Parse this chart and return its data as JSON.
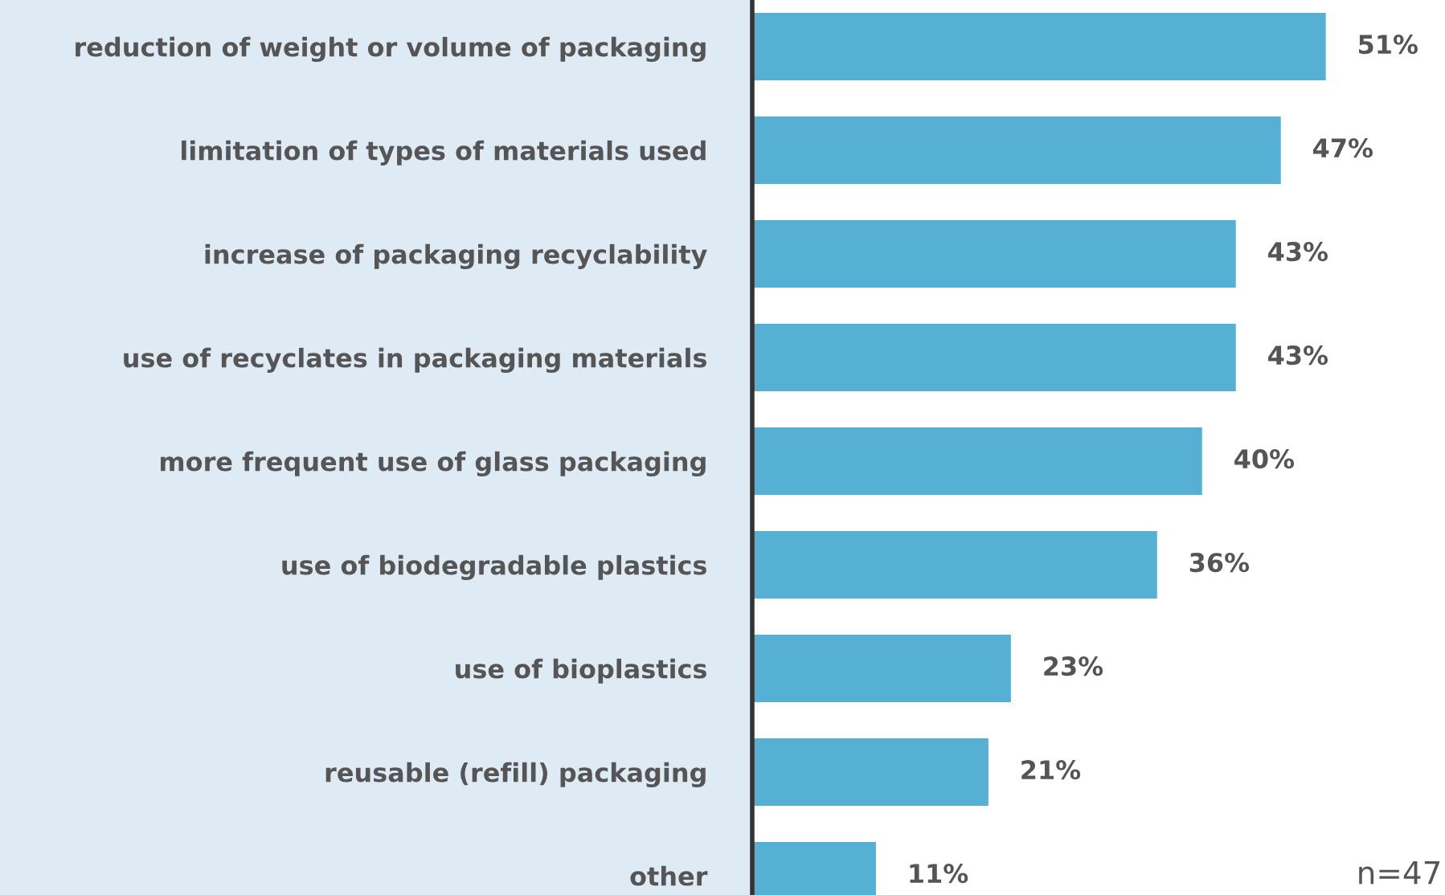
{
  "chart_data": {
    "type": "bar",
    "orientation": "horizontal",
    "categories": [
      "reduction of weight or volume of packaging",
      "limitation of types of materials used",
      "increase of packaging recyclability",
      "use of recyclates in packaging materials",
      "more frequent use of glass packaging",
      "use of biodegradable plastics",
      "use of bioplastics",
      "reusable (refill) packaging",
      "other"
    ],
    "values": [
      51,
      47,
      43,
      43,
      40,
      36,
      23,
      21,
      11
    ],
    "value_labels": [
      "51%",
      "47%",
      "43%",
      "43%",
      "40%",
      "36%",
      "23%",
      "21%",
      "11%"
    ],
    "color": "#56b0d4",
    "xlim": [
      0,
      61.6
    ],
    "tick_labels": "y",
    "grid": false,
    "legend": false,
    "annotations": [
      "n=47"
    ]
  }
}
